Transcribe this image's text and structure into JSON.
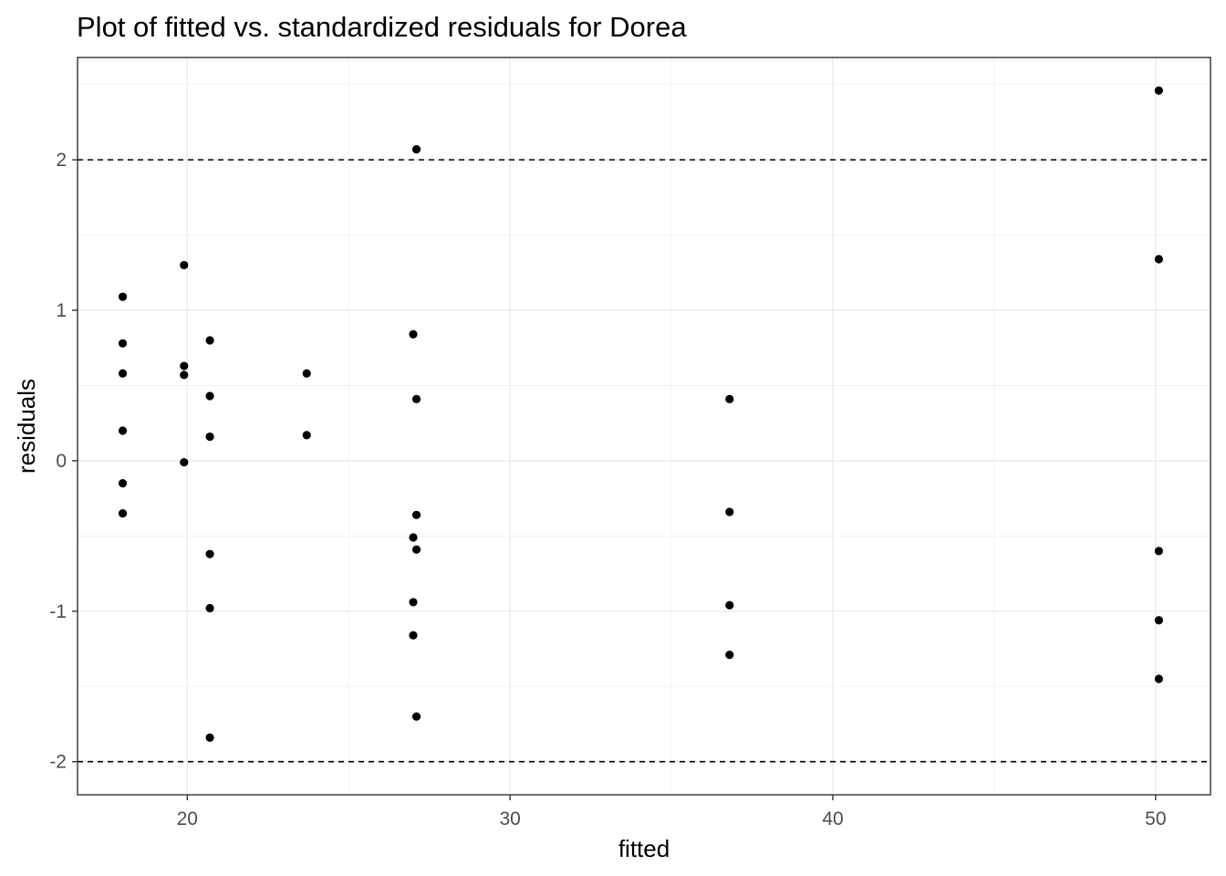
{
  "chart_data": {
    "type": "scatter",
    "title": "Plot of fitted vs. standardized residuals for Dorea",
    "xlabel": "fitted",
    "ylabel": "residuals",
    "xlim": [
      16.6,
      51.7
    ],
    "ylim": [
      -2.22,
      2.68
    ],
    "x_ticks": [
      20,
      30,
      40,
      50
    ],
    "y_ticks": [
      -2,
      -1,
      0,
      1,
      2
    ],
    "x_tick_labels": [
      "20",
      "30",
      "40",
      "50"
    ],
    "y_tick_labels": [
      "-2",
      "-1",
      "0",
      "1",
      "2"
    ],
    "reference_lines": [
      2,
      -2
    ],
    "grid": true,
    "theme": "bw",
    "point_color": "#000000",
    "points": [
      {
        "x": 18.0,
        "y": 1.09
      },
      {
        "x": 18.0,
        "y": 0.78
      },
      {
        "x": 18.0,
        "y": 0.58
      },
      {
        "x": 18.0,
        "y": 0.2
      },
      {
        "x": 18.0,
        "y": -0.15
      },
      {
        "x": 18.0,
        "y": -0.35
      },
      {
        "x": 19.9,
        "y": 1.3
      },
      {
        "x": 19.9,
        "y": 0.63
      },
      {
        "x": 19.9,
        "y": 0.57
      },
      {
        "x": 19.9,
        "y": -0.01
      },
      {
        "x": 20.7,
        "y": 0.8
      },
      {
        "x": 20.7,
        "y": 0.43
      },
      {
        "x": 20.7,
        "y": 0.16
      },
      {
        "x": 20.7,
        "y": -0.62
      },
      {
        "x": 20.7,
        "y": -0.98
      },
      {
        "x": 20.7,
        "y": -1.84
      },
      {
        "x": 23.7,
        "y": 0.58
      },
      {
        "x": 23.7,
        "y": 0.17
      },
      {
        "x": 27.1,
        "y": 2.07
      },
      {
        "x": 27.0,
        "y": 0.84
      },
      {
        "x": 27.1,
        "y": 0.41
      },
      {
        "x": 27.1,
        "y": -0.36
      },
      {
        "x": 27.0,
        "y": -0.51
      },
      {
        "x": 27.1,
        "y": -0.59
      },
      {
        "x": 27.0,
        "y": -0.94
      },
      {
        "x": 27.0,
        "y": -1.16
      },
      {
        "x": 27.1,
        "y": -1.7
      },
      {
        "x": 36.8,
        "y": 0.41
      },
      {
        "x": 36.8,
        "y": -0.34
      },
      {
        "x": 36.8,
        "y": -0.96
      },
      {
        "x": 36.8,
        "y": -1.29
      },
      {
        "x": 50.1,
        "y": 2.46
      },
      {
        "x": 50.1,
        "y": 1.34
      },
      {
        "x": 50.1,
        "y": -0.6
      },
      {
        "x": 50.1,
        "y": -1.06
      },
      {
        "x": 50.1,
        "y": -1.45
      }
    ]
  }
}
